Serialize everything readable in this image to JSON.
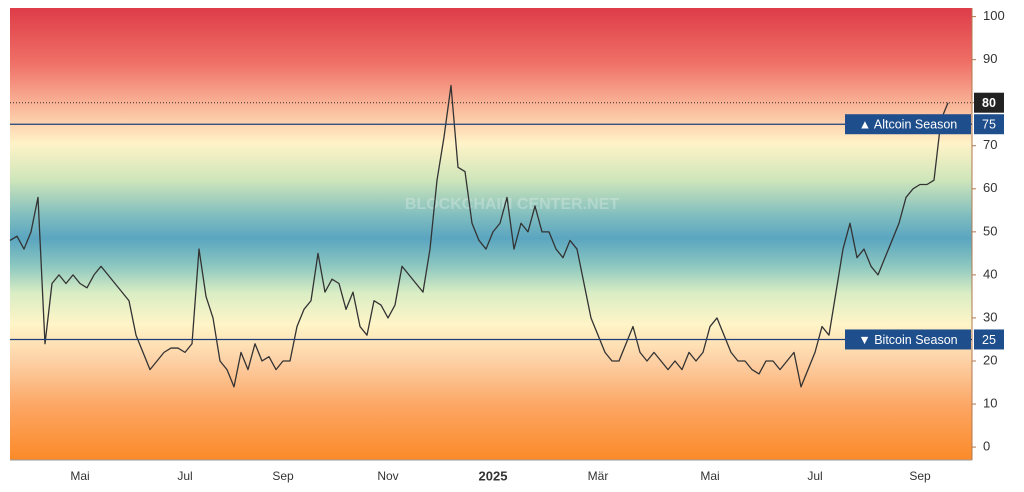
{
  "chart_data": {
    "type": "line",
    "watermark": "BLOCKCHAIN CENTER.NET",
    "categories": [
      null,
      null,
      null,
      null,
      null,
      null,
      null,
      null,
      null,
      null,
      "Mai",
      null,
      null,
      null,
      null,
      null,
      null,
      null,
      null,
      null,
      null,
      null,
      null,
      null,
      null,
      "Jul",
      null,
      null,
      null,
      null,
      null,
      null,
      null,
      null,
      null,
      null,
      null,
      null,
      null,
      "Sep",
      null,
      null,
      null,
      null,
      null,
      null,
      null,
      null,
      null,
      null,
      null,
      null,
      null,
      null,
      "Nov",
      null,
      null,
      null,
      null,
      null,
      null,
      null,
      null,
      null,
      null,
      null,
      null,
      null,
      null,
      "2025",
      null,
      null,
      null,
      null,
      null,
      null,
      null,
      null,
      null,
      null,
      null,
      null,
      null,
      null,
      "Mär",
      null,
      null,
      null,
      null,
      null,
      null,
      null,
      null,
      null,
      null,
      null,
      null,
      null,
      null,
      null,
      "Mai",
      null,
      null,
      null,
      null,
      null,
      null,
      null,
      null,
      null,
      null,
      null,
      null,
      null,
      null,
      "Jul",
      null,
      null,
      null,
      null,
      null,
      null,
      null,
      null,
      null,
      null,
      null,
      null,
      null,
      null,
      "Sep",
      null,
      null,
      null,
      null
    ],
    "values": [
      48,
      49,
      46,
      50,
      58,
      24,
      38,
      40,
      38,
      40,
      38,
      37,
      40,
      42,
      40,
      38,
      36,
      34,
      26,
      22,
      18,
      20,
      22,
      23,
      23,
      22,
      24,
      46,
      35,
      30,
      20,
      18,
      14,
      22,
      18,
      24,
      20,
      21,
      18,
      20,
      20,
      28,
      32,
      34,
      45,
      36,
      39,
      38,
      32,
      36,
      28,
      26,
      34,
      33,
      30,
      33,
      42,
      40,
      38,
      36,
      46,
      62,
      72,
      84,
      65,
      64,
      52,
      48,
      46,
      50,
      52,
      58,
      46,
      52,
      50,
      56,
      50,
      50,
      46,
      44,
      48,
      46,
      38,
      30,
      26,
      22,
      20,
      20,
      24,
      28,
      22,
      20,
      22,
      20,
      18,
      20,
      18,
      22,
      20,
      22,
      28,
      30,
      26,
      22,
      20,
      20,
      18,
      17,
      20,
      20,
      18,
      20,
      22,
      14,
      18,
      22,
      28,
      26,
      36,
      46,
      52,
      44,
      46,
      42,
      40,
      44,
      48,
      52,
      58,
      60,
      61,
      61,
      62,
      76,
      80
    ],
    "color": "#333333",
    "ylim": [
      -3,
      102
    ],
    "yticks": [
      0,
      10,
      20,
      30,
      40,
      50,
      60,
      70,
      80,
      90,
      100
    ],
    "reference_lines": [
      {
        "label": "▲ Altcoin Season",
        "value": 75
      },
      {
        "label": "▼ Bitcoin Season",
        "value": 25
      }
    ]
  }
}
